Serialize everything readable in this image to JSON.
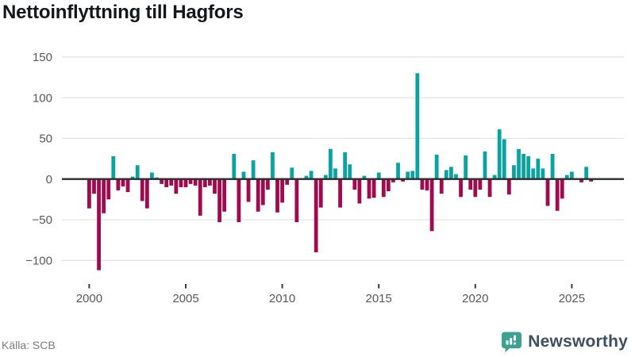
{
  "header": {
    "title": "Nettoinflyttning till Hagfors"
  },
  "footer": {
    "source_label": "Källa: SCB",
    "brand_name": "Newsworthy"
  },
  "colors": {
    "positive_bar": "#0ba3a0",
    "negative_bar": "#a00a4f",
    "zero_line": "#2d2d2d",
    "gridline": "#e4e4e4",
    "axis_text": "#585858",
    "tick_mark": "#3c3c3c",
    "title_text": "#13171b",
    "source_text": "#7b7b7b",
    "brand_icon": "#3da294",
    "brand_text": "#3c5060"
  },
  "chart_data": {
    "type": "bar",
    "title": "Nettoinflyttning till Hagfors",
    "xlabel": "",
    "ylabel": "",
    "frequency": "quarterly",
    "start_period": "2000-Q1",
    "end_period": "2026-Q1",
    "grid": true,
    "legend": false,
    "ylim": [
      -120,
      165
    ],
    "y_ticks": [
      150,
      100,
      50,
      0,
      -50,
      -100
    ],
    "y_tick_labels": [
      "150",
      "100",
      "50",
      "0",
      "−50",
      "−100"
    ],
    "x_tick_years": [
      2000,
      2005,
      2010,
      2015,
      2020,
      2025
    ],
    "x_tick_labels": [
      "2000",
      "2005",
      "2010",
      "2015",
      "2020",
      "2025"
    ],
    "values": [
      -36,
      -18,
      -112,
      -42,
      -25,
      28,
      -14,
      -9,
      -16,
      3,
      17,
      -27,
      -36,
      8,
      2,
      -6,
      -10,
      -8,
      -18,
      -10,
      -10,
      -6,
      -8,
      -45,
      -10,
      -8,
      -18,
      -53,
      -40,
      0,
      31,
      -53,
      9,
      -28,
      23,
      -40,
      -32,
      -13,
      33,
      -41,
      -29,
      -7,
      14,
      -53,
      0,
      4,
      10,
      -90,
      -35,
      5,
      37,
      13,
      -35,
      33,
      18,
      -13,
      -30,
      4,
      -24,
      -23,
      8,
      -22,
      -15,
      -4,
      20,
      -3,
      9,
      10,
      130,
      -13,
      -14,
      -64,
      30,
      -18,
      11,
      15,
      6,
      -22,
      29,
      -13,
      -22,
      -13,
      34,
      -22,
      5,
      61,
      49,
      -19,
      17,
      37,
      31,
      28,
      13,
      25,
      13,
      -33,
      31,
      -39,
      -24,
      5,
      9,
      0,
      -4,
      15,
      -3
    ]
  }
}
